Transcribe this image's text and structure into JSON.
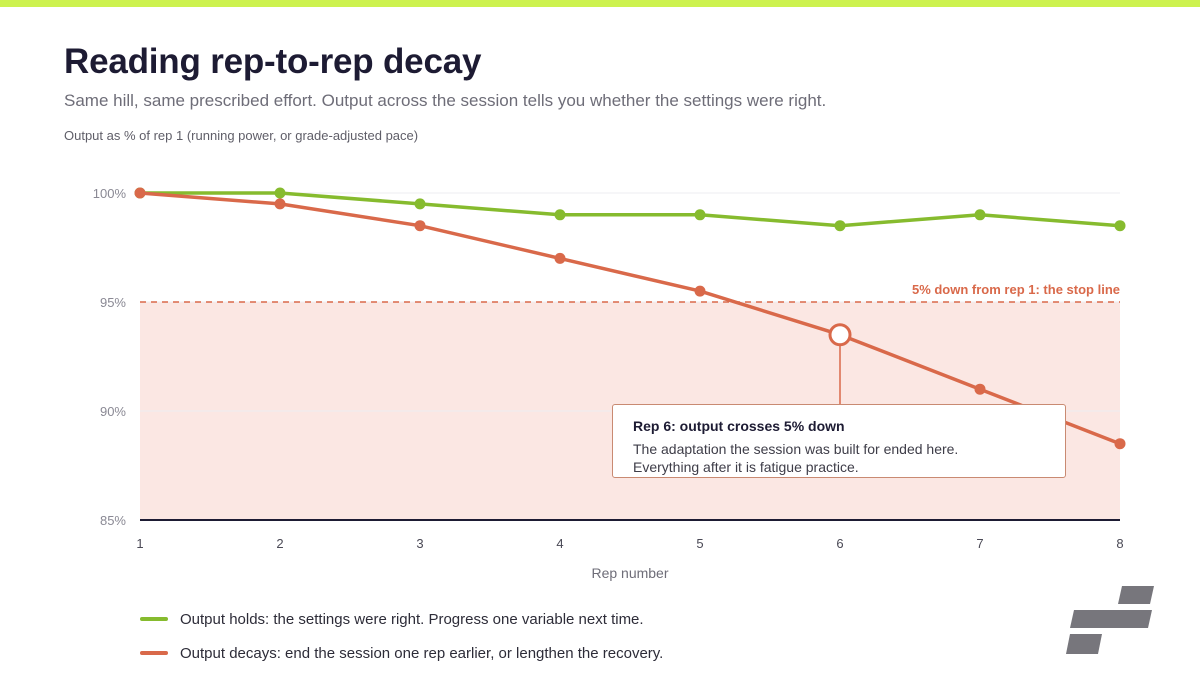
{
  "colors": {
    "accent_bar": "#cdf24f",
    "holds": "#86bb2e",
    "decays": "#d9694a",
    "zone_fill": "#fbe7e3",
    "axis": "#1d1b33",
    "grid": "#ececf0",
    "logo": "#77767c"
  },
  "header": {
    "title": "Reading rep-to-rep decay",
    "subtitle": "Same hill, same prescribed effort. Output across the session tells you whether the settings were right."
  },
  "callout": {
    "title": "Rep 6: output crosses 5% down",
    "body_lines": [
      "The adaptation the session was built for ended here.",
      "Everything after it is fatigue practice."
    ]
  },
  "legend": {
    "items": [
      {
        "series": "holds",
        "label": "Output holds: the settings were right. Progress one variable next time."
      },
      {
        "series": "decays",
        "label": "Output decays: end the session one rep earlier, or lengthen the recovery."
      }
    ]
  },
  "logo": {
    "icon": "brand-logo-icon"
  },
  "chart_data": {
    "type": "line",
    "note": "Output as % of rep 1 (running power, or grade-adjusted pace)",
    "xlabel": "Rep number",
    "ylabel": "",
    "x": [
      1,
      2,
      3,
      4,
      5,
      6,
      7,
      8
    ],
    "xlim": [
      1,
      8
    ],
    "ylim": [
      85,
      100
    ],
    "yticks": [
      100,
      95,
      90,
      85
    ],
    "ytick_labels": [
      "100%",
      "95%",
      "90%",
      "85%"
    ],
    "grid": true,
    "series": [
      {
        "key": "holds",
        "values": [
          100,
          100,
          99.5,
          99,
          99,
          98.5,
          99,
          98.5
        ]
      },
      {
        "key": "decays",
        "values": [
          100,
          99.5,
          98.5,
          97,
          95.5,
          93.5,
          91,
          88.5
        ]
      }
    ],
    "threshold": {
      "value": 95,
      "label": "5% down from rep 1: the stop line"
    },
    "highlight": {
      "series": "decays",
      "x": 6
    }
  }
}
